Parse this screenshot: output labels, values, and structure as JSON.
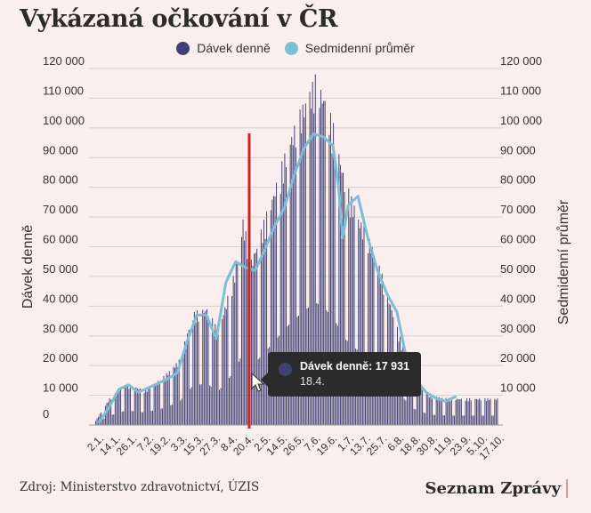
{
  "title": "Vykázaná očkování v ČR",
  "legend": [
    {
      "label": "Dávek denně",
      "color": "#3f4073"
    },
    {
      "label": "Sedmidenní průměr",
      "color": "#7bbfd6"
    }
  ],
  "footer": {
    "source": "Zdroj: Ministerstvo zdravotnictví, ÚZIS",
    "brand": "Seznam Zprávy"
  },
  "tooltip": {
    "series_label": "Dávek denně: 17 931",
    "date": "18.4."
  },
  "colors": {
    "bars": "#3f4073",
    "average_line": "#7bbfd6",
    "marker": "#d42020",
    "grid": "#d9d0d0",
    "background": "#fbeeee"
  },
  "chart_data": {
    "type": "bar",
    "title": "Vykázaná očkování v ČR",
    "ylabel": "Dávek denně",
    "y2label": "Sedmidenní průměr",
    "ylim": [
      0,
      120000
    ],
    "y_ticks": [
      0,
      10000,
      20000,
      30000,
      40000,
      50000,
      60000,
      70000,
      80000,
      90000,
      100000,
      110000,
      120000
    ],
    "y_tick_labels": [
      "0",
      "10 000",
      "20 000",
      "30 000",
      "40 000",
      "50 000",
      "60 000",
      "70 000",
      "80 000",
      "90 000",
      "100 000",
      "110 000",
      "120 000"
    ],
    "y2_tick_labels": [
      "",
      "10 000",
      "20 000",
      "30 000",
      "40 000",
      "50 000",
      "60 000",
      "70 000",
      "80 000",
      "90 000",
      "100 000",
      "110 000",
      "120 000"
    ],
    "x_tick_labels": [
      "2.1.",
      "14.1.",
      "26.1.",
      "7.2.",
      "19.2.",
      "3.3.",
      "15.3.",
      "27.3.",
      "8.4.",
      "20.4.",
      "2.5.",
      "14.5.",
      "26.5.",
      "7.6.",
      "19.6.",
      "1.7.",
      "13.7.",
      "25.7.",
      "6.8.",
      "18.8.",
      "30.8.",
      "11.9.",
      "23.9.",
      "5.10.",
      "17.10."
    ],
    "grid": true,
    "legend_position": "top-center",
    "marker_date": "18.4.",
    "series": [
      {
        "name": "Dávek denně",
        "type": "bar",
        "anchors": [
          [
            0,
            1500
          ],
          [
            10,
            9000
          ],
          [
            22,
            14000
          ],
          [
            35,
            12000
          ],
          [
            48,
            16000
          ],
          [
            60,
            22000
          ],
          [
            70,
            38000
          ],
          [
            80,
            40000
          ],
          [
            88,
            32000
          ],
          [
            100,
            52000
          ],
          [
            106,
            70000
          ],
          [
            112,
            56000
          ],
          [
            125,
            75000
          ],
          [
            140,
            98000
          ],
          [
            150,
            110000
          ],
          [
            158,
            118000
          ],
          [
            165,
            112000
          ],
          [
            172,
            100000
          ],
          [
            180,
            82000
          ],
          [
            190,
            70000
          ],
          [
            200,
            60000
          ],
          [
            210,
            45000
          ],
          [
            220,
            28000
          ],
          [
            228,
            16000
          ],
          [
            240,
            10000
          ],
          [
            255,
            9000
          ]
        ],
        "weekend_ratio": 0.35
      },
      {
        "name": "Sedmidenní průměr",
        "type": "line",
        "points": [
          [
            0,
            1000
          ],
          [
            7,
            6000
          ],
          [
            14,
            12000
          ],
          [
            21,
            13500
          ],
          [
            28,
            11000
          ],
          [
            35,
            12500
          ],
          [
            42,
            14000
          ],
          [
            49,
            15500
          ],
          [
            56,
            17500
          ],
          [
            63,
            28000
          ],
          [
            70,
            37000
          ],
          [
            77,
            37000
          ],
          [
            84,
            29000
          ],
          [
            91,
            48000
          ],
          [
            98,
            55000
          ],
          [
            105,
            53000
          ],
          [
            112,
            52000
          ],
          [
            119,
            59000
          ],
          [
            126,
            67000
          ],
          [
            133,
            73000
          ],
          [
            140,
            84000
          ],
          [
            147,
            93000
          ],
          [
            154,
            98000
          ],
          [
            161,
            97000
          ],
          [
            168,
            94000
          ],
          [
            172,
            80000
          ],
          [
            175,
            63000
          ],
          [
            179,
            74000
          ],
          [
            186,
            77000
          ],
          [
            193,
            63000
          ],
          [
            200,
            52000
          ],
          [
            207,
            44000
          ],
          [
            214,
            38000
          ],
          [
            221,
            22000
          ],
          [
            228,
            15000
          ],
          [
            235,
            11000
          ],
          [
            242,
            9000
          ],
          [
            249,
            8000
          ],
          [
            256,
            9500
          ]
        ]
      }
    ]
  }
}
